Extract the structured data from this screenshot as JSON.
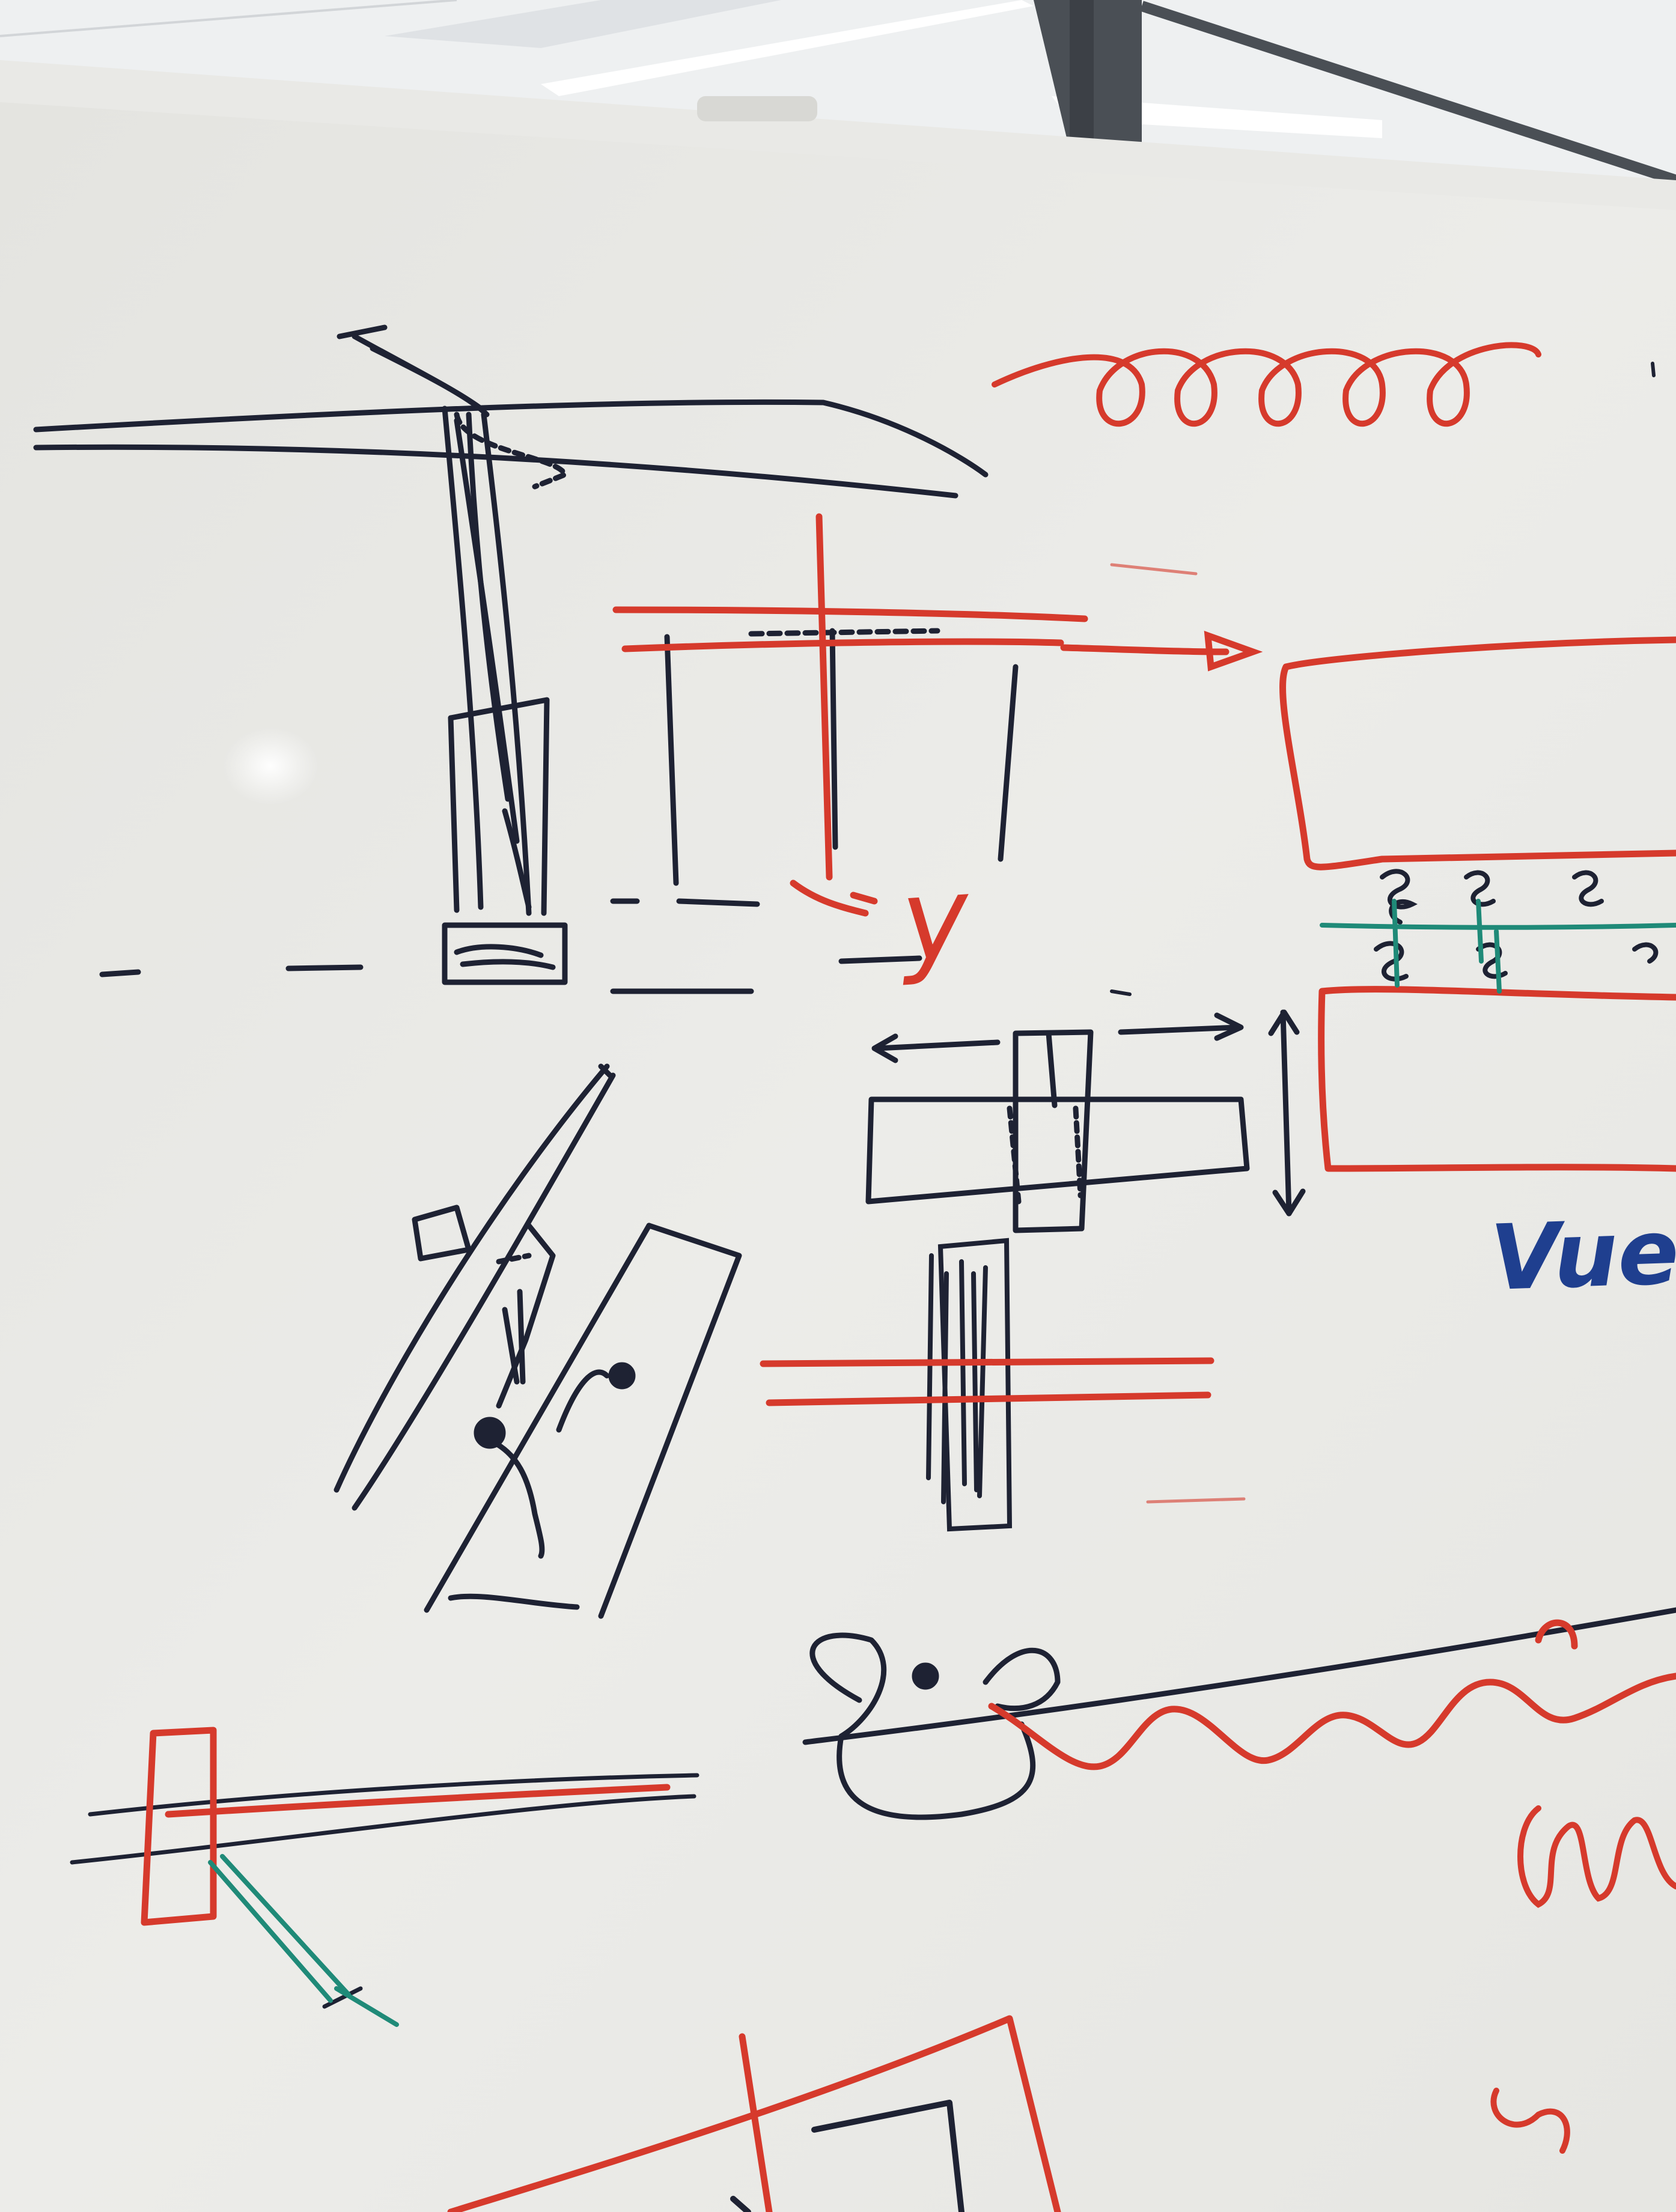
{
  "image": {
    "kind": "photo of a whiteboard with hand-drawn marker sketches",
    "colors": {
      "ceiling": "#f2f3f4",
      "ceiling_panel": "#e6e8ea",
      "light_strip": "#ffffff",
      "window_frame": "#4a4f55",
      "board_frame": "#e9e9e6",
      "board": "#ecece9",
      "glare": "#fbfbf9",
      "marker_black": "#1e2233",
      "marker_red": "#d63a2c",
      "marker_teal": "#1f8a78",
      "marker_blue": "#1f3f8f"
    }
  },
  "annotations": {
    "y_label": "y",
    "vue_label": "Vue d"
  }
}
